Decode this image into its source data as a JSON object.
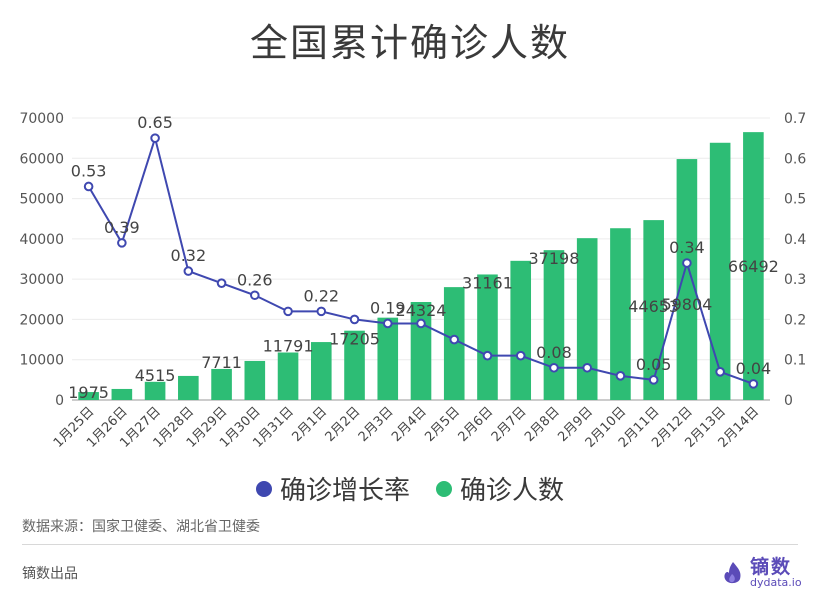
{
  "title": "全国累计确诊人数",
  "legend": {
    "rate_label": "确诊增长率",
    "cases_label": "确诊人数"
  },
  "source": "数据来源：国家卫健委、湖北省卫健委",
  "credit": "镝数出品",
  "brand": {
    "name": "镝数",
    "url": "dydata.io"
  },
  "colors": {
    "bar": "#2dbd75",
    "line": "#3f48b0",
    "text": "#3a3a3a"
  },
  "chart_data": {
    "type": "bar",
    "title": "全国累计确诊人数",
    "categories": [
      "1月25日",
      "1月26日",
      "1月27日",
      "1月28日",
      "1月29日",
      "1月30日",
      "1月31日",
      "2月1日",
      "2月2日",
      "2月3日",
      "2月4日",
      "2月5日",
      "2月6日",
      "2月7日",
      "2月8日",
      "2月9日",
      "2月10日",
      "2月11日",
      "2月12日",
      "2月13日",
      "2月14日"
    ],
    "ylim": [
      0,
      70000
    ],
    "yticks": [
      0,
      10000,
      20000,
      30000,
      40000,
      50000,
      60000,
      70000
    ],
    "y2lim": [
      0,
      0.7
    ],
    "y2ticks": [
      0,
      0.1,
      0.2,
      0.3,
      0.4,
      0.5,
      0.6,
      0.7
    ],
    "series": [
      {
        "name": "确诊人数",
        "type": "bar",
        "axis": "left",
        "values": [
          1975,
          2744,
          4515,
          5974,
          7711,
          9692,
          11791,
          14380,
          17205,
          20438,
          24324,
          28018,
          31161,
          34546,
          37198,
          40171,
          42638,
          44653,
          59804,
          63851,
          66492
        ],
        "data_labels": {
          "0": "1975",
          "2": "4515",
          "4": "7711",
          "6": "11791",
          "8": "17205",
          "10": "24324",
          "12": "31161",
          "14": "37198",
          "17": "44653",
          "18": "59804",
          "20": "66492"
        }
      },
      {
        "name": "确诊增长率",
        "type": "line",
        "axis": "right",
        "values": [
          0.53,
          0.39,
          0.65,
          0.32,
          0.29,
          0.26,
          0.22,
          0.22,
          0.2,
          0.19,
          0.19,
          0.15,
          0.11,
          0.11,
          0.08,
          0.08,
          0.06,
          0.05,
          0.34,
          0.07,
          0.04
        ],
        "data_labels": {
          "0": "0.53",
          "1": "0.39",
          "2": "0.65",
          "3": "0.32",
          "5": "0.26",
          "7": "0.22",
          "9": "0.19",
          "14": "0.08",
          "17": "0.05",
          "18": "0.34",
          "20": "0.04"
        }
      }
    ],
    "grid": true,
    "legend_position": "bottom"
  }
}
